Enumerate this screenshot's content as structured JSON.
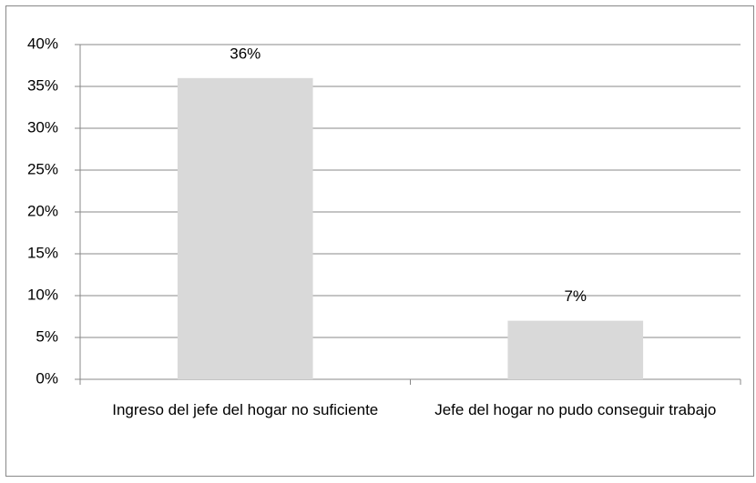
{
  "chart_data": {
    "type": "bar",
    "categories": [
      "Ingreso del jefe del hogar no suficiente",
      "Jefe del hogar no pudo conseguir trabajo"
    ],
    "values": [
      36,
      7
    ],
    "value_labels": [
      "36%",
      "7%"
    ],
    "color": "#d9d9d9",
    "ylim": [
      0,
      40
    ],
    "yticks": [
      {
        "value": 0,
        "label": "0%"
      },
      {
        "value": 5,
        "label": "5%"
      },
      {
        "value": 10,
        "label": "10%"
      },
      {
        "value": 15,
        "label": "15%"
      },
      {
        "value": 20,
        "label": "20%"
      },
      {
        "value": 25,
        "label": "25%"
      },
      {
        "value": 30,
        "label": "30%"
      },
      {
        "value": 35,
        "label": "35%"
      },
      {
        "value": 40,
        "label": "40%"
      }
    ],
    "grid": true
  }
}
